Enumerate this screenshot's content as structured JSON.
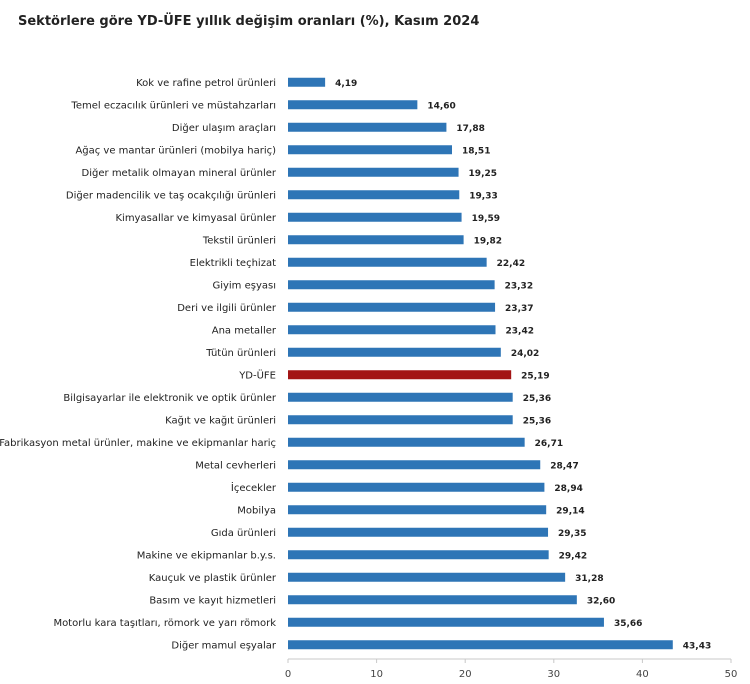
{
  "title": "Sektörlere göre YD-ÜFE yıllık değişim oranları (%), Kasım 2024",
  "chart_data": {
    "type": "bar",
    "orientation": "horizontal",
    "title": "Sektörlere göre YD-ÜFE yıllık değişim oranları (%), Kasım 2024",
    "categories": [
      "Kok ve rafine petrol ürünleri",
      "Temel eczacılık ürünleri ve müstahzarları",
      "Diğer ulaşım araçları",
      "Ağaç ve mantar ürünleri (mobilya hariç)",
      "Diğer metalik olmayan mineral ürünler",
      "Diğer madencilik ve taş ocakçılığı ürünleri",
      "Kimyasallar ve kimyasal ürünler",
      "Tekstil ürünleri",
      "Elektrikli teçhizat",
      "Giyim eşyası",
      "Deri ve ilgili ürünler",
      "Ana metaller",
      "Tütün ürünleri",
      "YD-ÜFE",
      "Bilgisayarlar ile elektronik ve optik ürünler",
      "Kağıt ve kağıt ürünleri",
      "Fabrikasyon metal ürünler, makine ve ekipmanlar hariç",
      "Metal cevherleri",
      "İçecekler",
      "Mobilya",
      "Gıda ürünleri",
      "Makine ve ekipmanlar b.y.s.",
      "Kauçuk ve plastik ürünler",
      "Basım ve kayıt hizmetleri",
      "Motorlu kara taşıtları, römork ve yarı römork",
      "Diğer mamul eşyalar"
    ],
    "values": [
      4.19,
      14.6,
      17.88,
      18.51,
      19.25,
      19.33,
      19.59,
      19.82,
      22.42,
      23.32,
      23.37,
      23.42,
      24.02,
      25.19,
      25.36,
      25.36,
      26.71,
      28.47,
      28.94,
      29.14,
      29.35,
      29.42,
      31.28,
      32.6,
      35.66,
      43.43
    ],
    "value_labels": [
      "4,19",
      "14,60",
      "17,88",
      "18,51",
      "19,25",
      "19,33",
      "19,59",
      "19,82",
      "22,42",
      "23,32",
      "23,37",
      "23,42",
      "24,02",
      "25,19",
      "25,36",
      "25,36",
      "26,71",
      "28,47",
      "28,94",
      "29,14",
      "29,35",
      "29,42",
      "31,28",
      "32,60",
      "35,66",
      "43,43"
    ],
    "highlight_category": "YD-ÜFE",
    "xlim": [
      0,
      50
    ],
    "xticks": [
      0,
      10,
      20,
      30,
      40,
      50
    ],
    "grid": false,
    "legend": "none",
    "colors": {
      "bar": "#2e75b6",
      "highlight": "#a31515",
      "axis": "#c8c8c8",
      "text": "#222222"
    }
  }
}
